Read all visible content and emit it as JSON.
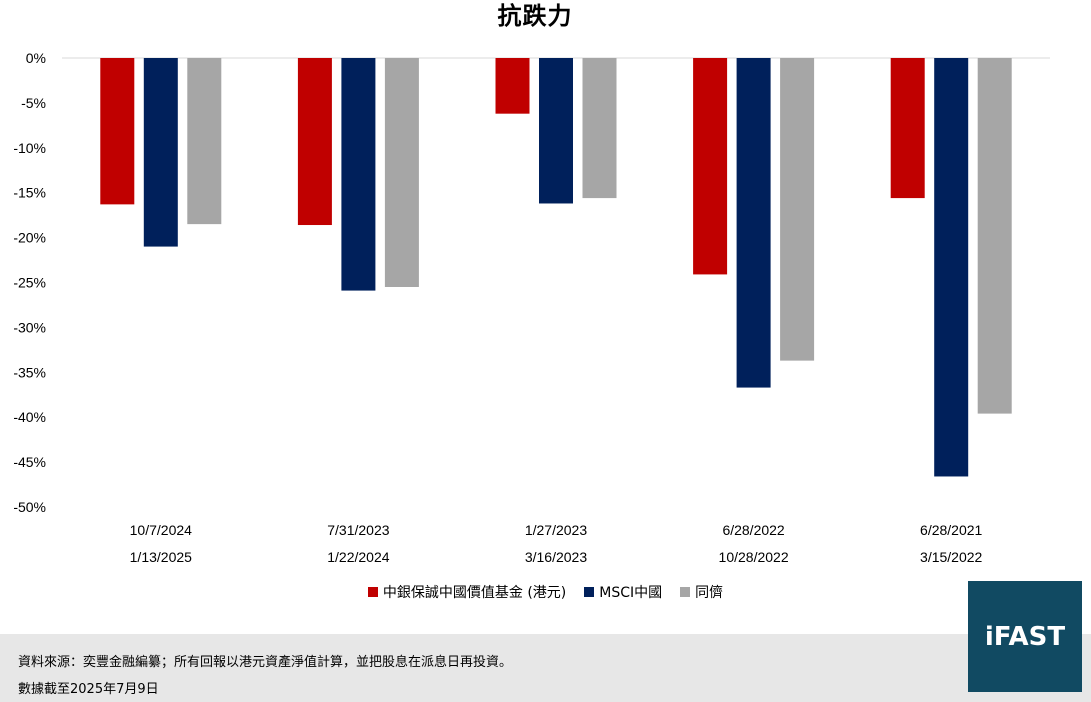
{
  "chart_data": {
    "type": "bar",
    "title": "抗跌力",
    "ylim": [
      -50,
      0
    ],
    "y_ticks": [
      "0%",
      "-5%",
      "-10%",
      "-15%",
      "-20%",
      "-25%",
      "-30%",
      "-35%",
      "-40%",
      "-45%",
      "-50%"
    ],
    "categories": [
      {
        "start": "10/7/2024",
        "end": "1/13/2025"
      },
      {
        "start": "7/31/2023",
        "end": "1/22/2024"
      },
      {
        "start": "1/27/2023",
        "end": "3/16/2023"
      },
      {
        "start": "6/28/2022",
        "end": "10/28/2022"
      },
      {
        "start": "6/28/2021",
        "end": "3/15/2022"
      }
    ],
    "series": [
      {
        "name": "中銀保誠中國價值基金 (港元)",
        "color": "#c00000",
        "values": [
          -16.3,
          -18.6,
          -6.2,
          -24.1,
          -15.6
        ]
      },
      {
        "name": "MSCI中國",
        "color": "#00205b",
        "values": [
          -21.0,
          -25.9,
          -16.2,
          -36.7,
          -46.6
        ]
      },
      {
        "name": "同儕",
        "color": "#a6a6a6",
        "values": [
          -18.5,
          -25.5,
          -15.6,
          -33.7,
          -39.6
        ]
      }
    ],
    "grid": false,
    "legend_position": "bottom"
  },
  "footer": {
    "source": "資料來源：奕豐金融編纂；所有回報以港元資產淨值計算，並把股息在派息日再投資。",
    "date_note": "數據截至2025年7月9日"
  },
  "logo": {
    "text": "iFAST"
  }
}
